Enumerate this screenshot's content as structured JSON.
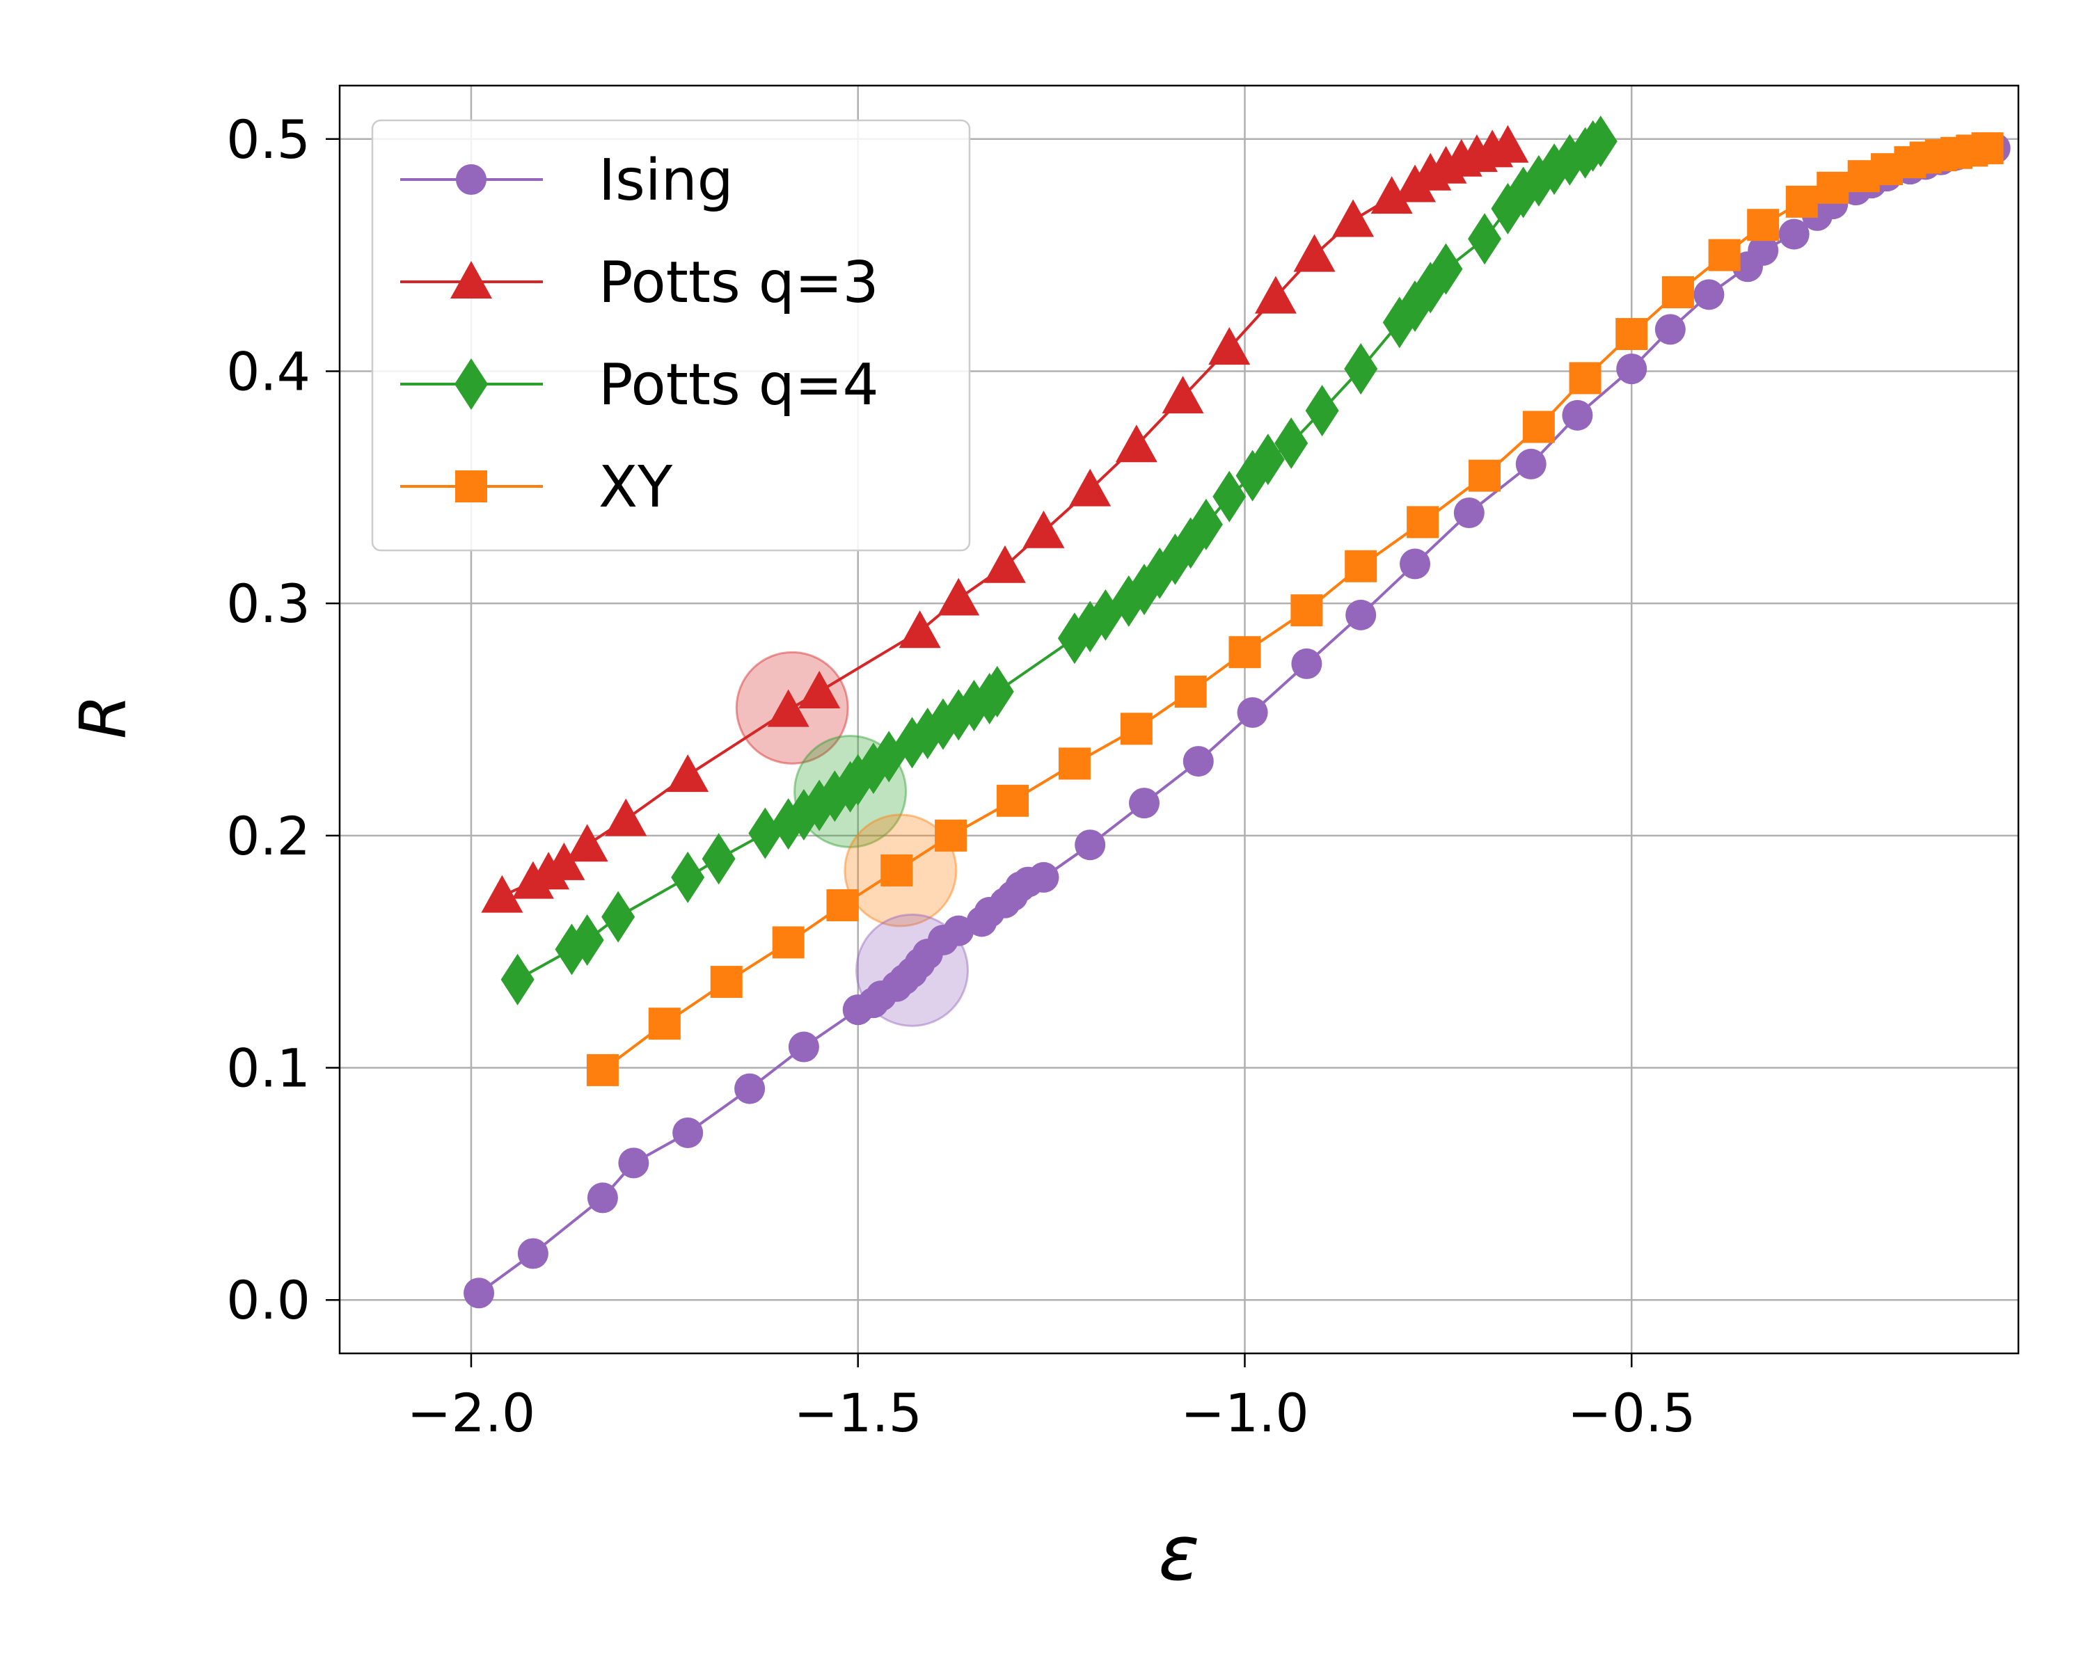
{
  "chart_data": {
    "type": "line",
    "title": "",
    "xlabel": "ε",
    "ylabel": "R",
    "xlim": [
      -2.17,
      0.0
    ],
    "ylim": [
      -0.023,
      0.523
    ],
    "xticks": [
      -2.0,
      -1.5,
      -1.0,
      -0.5
    ],
    "xtick_labels": [
      "−2.0",
      "−1.5",
      "−1.0",
      "−0.5"
    ],
    "yticks": [
      0.0,
      0.1,
      0.2,
      0.3,
      0.4,
      0.5
    ],
    "ytick_labels": [
      "0.0",
      "0.1",
      "0.2",
      "0.3",
      "0.4",
      "0.5"
    ],
    "grid": true,
    "legend_position": "upper-left",
    "series": [
      {
        "name": "Ising",
        "color": "#9467bd",
        "marker": "circle",
        "x": [
          -1.99,
          -1.92,
          -1.83,
          -1.79,
          -1.72,
          -1.64,
          -1.57,
          -1.5,
          -1.48,
          -1.47,
          -1.45,
          -1.44,
          -1.43,
          -1.42,
          -1.41,
          -1.39,
          -1.37,
          -1.34,
          -1.33,
          -1.31,
          -1.3,
          -1.29,
          -1.28,
          -1.26,
          -1.2,
          -1.13,
          -1.06,
          -0.99,
          -0.92,
          -0.85,
          -0.78,
          -0.71,
          -0.63,
          -0.57,
          -0.5,
          -0.45,
          -0.4,
          -0.35,
          -0.33,
          -0.29,
          -0.26,
          -0.24,
          -0.21,
          -0.19,
          -0.17,
          -0.14,
          -0.12,
          -0.1,
          -0.08,
          -0.05,
          -0.03
        ],
        "y": [
          0.003,
          0.02,
          0.044,
          0.059,
          0.072,
          0.091,
          0.109,
          0.125,
          0.128,
          0.131,
          0.135,
          0.138,
          0.141,
          0.145,
          0.149,
          0.155,
          0.159,
          0.163,
          0.167,
          0.171,
          0.174,
          0.178,
          0.18,
          0.182,
          0.196,
          0.214,
          0.232,
          0.253,
          0.274,
          0.295,
          0.317,
          0.339,
          0.36,
          0.381,
          0.401,
          0.418,
          0.433,
          0.445,
          0.452,
          0.459,
          0.467,
          0.472,
          0.478,
          0.481,
          0.484,
          0.487,
          0.489,
          0.491,
          0.493,
          0.495,
          0.496
        ]
      },
      {
        "name": "Potts q=3",
        "color": "#d62728",
        "marker": "triangle",
        "x": [
          -1.96,
          -1.92,
          -1.9,
          -1.88,
          -1.85,
          -1.8,
          -1.72,
          -1.59,
          -1.55,
          -1.42,
          -1.37,
          -1.31,
          -1.26,
          -1.2,
          -1.14,
          -1.08,
          -1.02,
          -0.96,
          -0.91,
          -0.86,
          -0.81,
          -0.78,
          -0.76,
          -0.74,
          -0.72,
          -0.7,
          -0.68,
          -0.66
        ],
        "y": [
          0.174,
          0.18,
          0.184,
          0.188,
          0.196,
          0.207,
          0.226,
          0.254,
          0.262,
          0.288,
          0.302,
          0.316,
          0.331,
          0.349,
          0.368,
          0.389,
          0.41,
          0.432,
          0.45,
          0.465,
          0.475,
          0.48,
          0.485,
          0.488,
          0.491,
          0.493,
          0.495,
          0.497
        ]
      },
      {
        "name": "Potts q=4",
        "color": "#2ca02c",
        "marker": "diamond",
        "x": [
          -1.94,
          -1.87,
          -1.85,
          -1.81,
          -1.72,
          -1.68,
          -1.62,
          -1.59,
          -1.57,
          -1.55,
          -1.53,
          -1.51,
          -1.5,
          -1.48,
          -1.46,
          -1.43,
          -1.41,
          -1.39,
          -1.37,
          -1.35,
          -1.33,
          -1.32,
          -1.22,
          -1.2,
          -1.18,
          -1.15,
          -1.13,
          -1.11,
          -1.09,
          -1.07,
          -1.05,
          -1.02,
          -0.99,
          -0.97,
          -0.94,
          -0.9,
          -0.85,
          -0.8,
          -0.78,
          -0.76,
          -0.74,
          -0.69,
          -0.66,
          -0.64,
          -0.62,
          -0.6,
          -0.58,
          -0.56,
          -0.55,
          -0.54
        ],
        "y": [
          0.138,
          0.151,
          0.155,
          0.165,
          0.182,
          0.19,
          0.201,
          0.205,
          0.209,
          0.213,
          0.217,
          0.221,
          0.224,
          0.229,
          0.234,
          0.24,
          0.244,
          0.248,
          0.252,
          0.256,
          0.259,
          0.262,
          0.285,
          0.29,
          0.295,
          0.301,
          0.306,
          0.313,
          0.319,
          0.326,
          0.334,
          0.346,
          0.355,
          0.362,
          0.369,
          0.383,
          0.401,
          0.421,
          0.428,
          0.436,
          0.444,
          0.457,
          0.47,
          0.477,
          0.482,
          0.487,
          0.491,
          0.494,
          0.497,
          0.499
        ]
      },
      {
        "name": "XY",
        "color": "#ff7f0e",
        "marker": "square",
        "x": [
          -1.83,
          -1.75,
          -1.67,
          -1.59,
          -1.52,
          -1.45,
          -1.38,
          -1.3,
          -1.22,
          -1.14,
          -1.07,
          -1.0,
          -0.92,
          -0.85,
          -0.77,
          -0.69,
          -0.62,
          -0.56,
          -0.5,
          -0.44,
          -0.38,
          -0.33,
          -0.28,
          -0.24,
          -0.2,
          -0.17,
          -0.14,
          -0.12,
          -0.1,
          -0.08,
          -0.06,
          -0.04
        ],
        "y": [
          0.099,
          0.119,
          0.137,
          0.154,
          0.17,
          0.185,
          0.2,
          0.215,
          0.231,
          0.246,
          0.262,
          0.279,
          0.297,
          0.316,
          0.335,
          0.355,
          0.376,
          0.397,
          0.416,
          0.434,
          0.45,
          0.463,
          0.473,
          0.479,
          0.484,
          0.487,
          0.49,
          0.492,
          0.493,
          0.494,
          0.495,
          0.496
        ]
      }
    ],
    "highlights": [
      {
        "series": "Potts q=3",
        "x": -1.585,
        "y": 0.255
      },
      {
        "series": "Potts q=4",
        "x": -1.51,
        "y": 0.219
      },
      {
        "series": "XY",
        "x": -1.445,
        "y": 0.185
      },
      {
        "series": "Ising",
        "x": -1.43,
        "y": 0.142
      }
    ]
  }
}
